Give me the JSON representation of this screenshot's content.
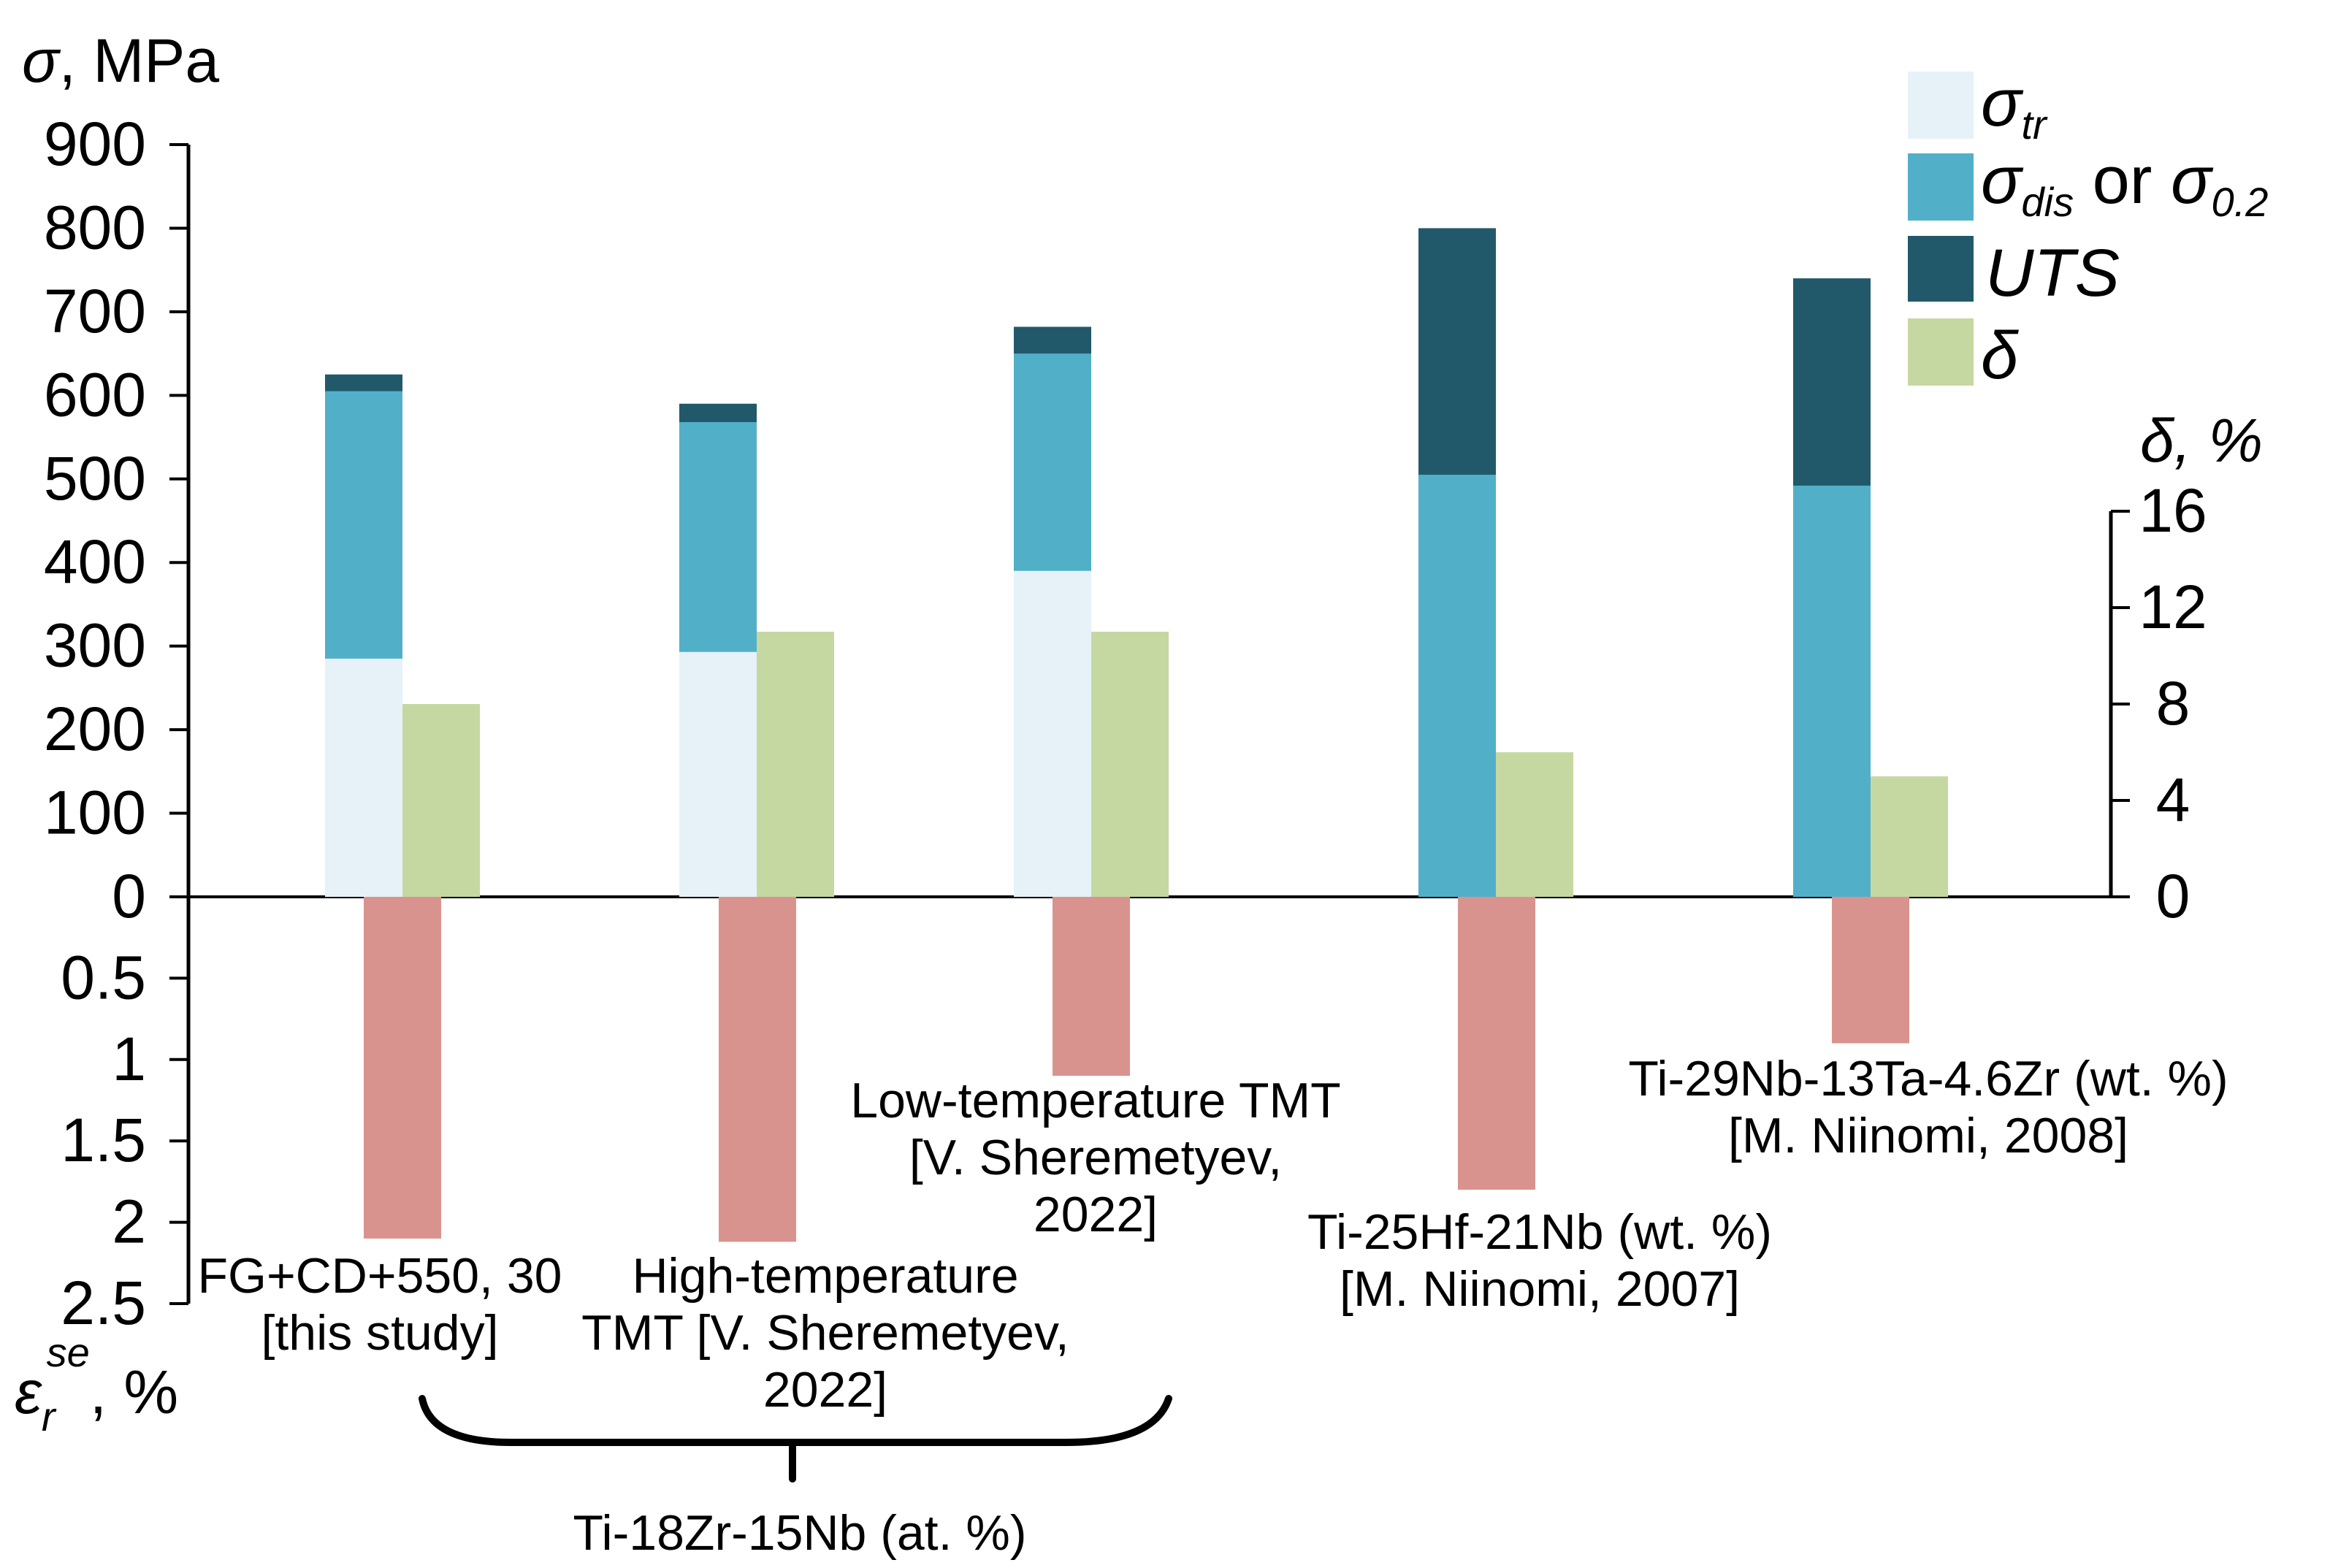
{
  "chart_data": {
    "type": "bar",
    "title": "",
    "groups": [
      {
        "name": "FG+CD+550, 30",
        "label_lines": [
          "FG+CD+550, 30",
          "[this study]"
        ],
        "sigma_tr": 285,
        "sigma_dis": 605,
        "uts": 625,
        "delta": 8,
        "epsilon": 2.1
      },
      {
        "name": "High-temperature TMT",
        "label_lines": [
          "High-temperature",
          "TMT [V. Sheremetyev,",
          "2022]"
        ],
        "sigma_tr": 293,
        "sigma_dis": 568,
        "uts": 590,
        "delta": 11,
        "epsilon": 2.12
      },
      {
        "name": "Low-temperature TMT",
        "label_lines": [
          "Low-temperature TMT",
          "[V. Sheremetyev,",
          "2022]"
        ],
        "sigma_tr": 390,
        "sigma_dis": 650,
        "uts": 682,
        "delta": 11,
        "epsilon": 1.1
      },
      {
        "name": "Ti-25Hf-21Nb (wt. %)",
        "label_lines": [
          "Ti-25Hf-21Nb (wt. %)",
          "[M. Niinomi, 2007]"
        ],
        "sigma_tr": null,
        "sigma_dis": 505,
        "uts": 800,
        "delta": 6,
        "epsilon": 1.8
      },
      {
        "name": "Ti-29Nb-13Ta-4.6Zr (wt. %)",
        "label_lines": [
          "Ti-29Nb-13Ta-4.6Zr (wt. %)",
          "[M. Niinomi, 2008]"
        ],
        "sigma_tr": null,
        "sigma_dis": 492,
        "uts": 740,
        "delta": 5,
        "epsilon": 0.9
      }
    ],
    "group_bracket_label": "Ti-18Zr-15Nb (at. %)",
    "left_axis": {
      "label_symbol": "σ",
      "label_text": ", MPa",
      "ylim": [
        0,
        900
      ],
      "ticks": [
        "900",
        "800",
        "700",
        "600",
        "500",
        "400",
        "300",
        "200",
        "100",
        "0"
      ]
    },
    "lower_axis": {
      "label_symbol": "ε",
      "label_sub": "r",
      "label_sup": "se",
      "label_text": ", %",
      "ylim": [
        0,
        2.5
      ],
      "ticks": [
        "0.5",
        "1",
        "1.5",
        "2",
        "2.5"
      ]
    },
    "right_axis": {
      "label_text": "δ, %",
      "ylim": [
        0,
        16
      ],
      "ticks": [
        "16",
        "12",
        "8",
        "4",
        "0"
      ]
    },
    "legend": {
      "sigma_tr": {
        "symbol": "σ",
        "sub": "tr"
      },
      "sigma_dis": {
        "symbol": "σ",
        "sub": "dis",
        "mid": " or ",
        "symbol2": "σ",
        "sub2": "0.2"
      },
      "uts": {
        "label": "UTS"
      },
      "delta": {
        "label": "δ"
      }
    },
    "colors": {
      "sigma_tr": "#e6f2f8",
      "sigma_dis": "#52afc8",
      "uts": "#21596a",
      "delta": "#c5d8a1",
      "epsilon": "#d9938f"
    }
  }
}
